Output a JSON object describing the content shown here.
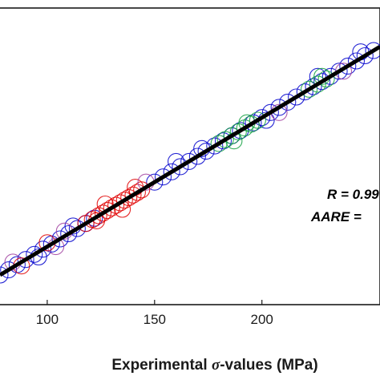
{
  "chart_data": {
    "type": "scatter",
    "title": "",
    "xlabel": {
      "prefix": "Experimental ",
      "symbol": "σ",
      "suffix": "-values (MPa)"
    },
    "ylabel": "",
    "xlim": [
      78,
      255
    ],
    "ylim": [
      55,
      285
    ],
    "xticks": [
      100,
      150,
      200
    ],
    "xtick_labels": [
      "100",
      "150",
      "200"
    ],
    "grid": false,
    "legend": "none",
    "colors": {
      "blue": "#0000cc",
      "red": "#e00000",
      "green": "#10a040",
      "purple": "#a040a0",
      "fit_line": "#000000"
    },
    "series": [
      {
        "color": "blue",
        "x": [
          78,
          82,
          86,
          90,
          94,
          98,
          102,
          106,
          110,
          114,
          118,
          122,
          150,
          154,
          158,
          162,
          166,
          170,
          174,
          178,
          182,
          186,
          190,
          196,
          200,
          204,
          208,
          212,
          216,
          220,
          224,
          228,
          232,
          236,
          240,
          244,
          248,
          252,
          160,
          172,
          202,
          226,
          246,
          112,
          96
        ],
        "y": [
          78,
          82,
          86,
          90,
          94,
          98,
          102,
          106,
          110,
          114,
          118,
          122,
          150,
          154,
          158,
          162,
          166,
          170,
          174,
          178,
          182,
          186,
          190,
          196,
          200,
          204,
          208,
          212,
          216,
          220,
          224,
          228,
          232,
          236,
          240,
          244,
          248,
          252,
          166,
          176,
          198,
          232,
          251,
          116,
          92
        ]
      },
      {
        "color": "red",
        "x": [
          118,
          121,
          124,
          126,
          128,
          130,
          132,
          134,
          136,
          138,
          140,
          142,
          144,
          127,
          135,
          141,
          123,
          88,
          100
        ],
        "y": [
          118,
          121,
          124,
          126,
          128,
          130,
          132,
          134,
          136,
          138,
          140,
          142,
          144,
          133,
          129,
          146,
          120,
          85,
          103
        ]
      },
      {
        "color": "green",
        "x": [
          180,
          183,
          186,
          189,
          192,
          195,
          198,
          187,
          193,
          222,
          226,
          230,
          228
        ],
        "y": [
          180,
          183,
          186,
          189,
          192,
          195,
          198,
          182,
          196,
          222,
          226,
          230,
          232
        ]
      },
      {
        "color": "purple",
        "x": [
          84,
          104,
          108,
          146,
          208,
          238
        ],
        "y": [
          88,
          100,
          112,
          150,
          204,
          236
        ]
      }
    ],
    "fit_line": {
      "x": [
        78,
        255
      ],
      "y": [
        78,
        255
      ]
    },
    "annotations": [
      {
        "id": "r",
        "text": "R = 0.99"
      },
      {
        "id": "aare",
        "text": "AARE = "
      }
    ]
  }
}
